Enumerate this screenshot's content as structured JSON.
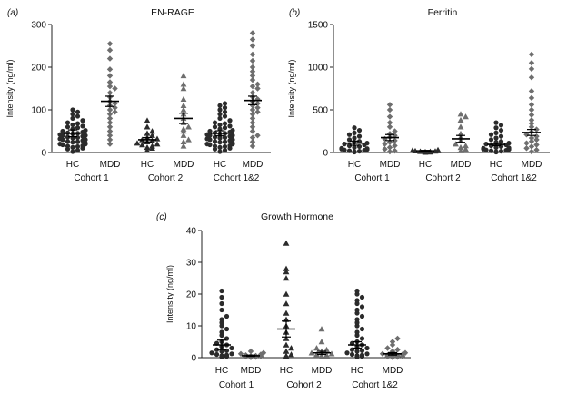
{
  "chart_data": [
    {
      "type": "scatter",
      "panel_label": "(a)",
      "title": "EN-RAGE",
      "ylabel": "Intensity (ng/ml)",
      "ylim": [
        0,
        300
      ],
      "yticks": [
        0,
        100,
        200,
        300
      ],
      "groups": [
        {
          "label": "HC",
          "marker": "circle",
          "color": "#2b2b2b",
          "mean": 45,
          "sem": 8,
          "values": [
            2,
            5,
            8,
            10,
            12,
            14,
            15,
            16,
            18,
            20,
            20,
            22,
            24,
            25,
            26,
            28,
            30,
            30,
            32,
            34,
            35,
            36,
            38,
            40,
            40,
            42,
            44,
            45,
            46,
            48,
            50,
            52,
            55,
            58,
            60,
            62,
            65,
            68,
            70,
            75,
            80,
            85,
            90,
            95,
            100
          ]
        },
        {
          "label": "MDD",
          "marker": "diamond",
          "color": "#6e6e6e",
          "mean": 120,
          "sem": 12,
          "values": [
            20,
            30,
            40,
            50,
            60,
            70,
            80,
            90,
            95,
            100,
            105,
            110,
            115,
            120,
            130,
            140,
            150,
            155,
            165,
            180,
            195,
            220,
            240,
            255
          ]
        },
        {
          "label": "HC",
          "marker": "triangle",
          "color": "#2b2b2b",
          "mean": 30,
          "sem": 5,
          "values": [
            5,
            10,
            12,
            15,
            18,
            20,
            22,
            25,
            28,
            30,
            32,
            35,
            40,
            45,
            50,
            60,
            75
          ]
        },
        {
          "label": "MDD",
          "marker": "triangle",
          "color": "#6e6e6e",
          "mean": 80,
          "sem": 12,
          "values": [
            15,
            25,
            30,
            40,
            50,
            55,
            60,
            70,
            80,
            90,
            100,
            110,
            125,
            150,
            160,
            180
          ]
        },
        {
          "label": "HC",
          "marker": "circle",
          "color": "#2b2b2b",
          "mean": 45,
          "sem": 6,
          "values": [
            2,
            5,
            8,
            10,
            12,
            14,
            15,
            16,
            18,
            20,
            20,
            22,
            24,
            25,
            26,
            28,
            30,
            30,
            32,
            34,
            35,
            36,
            38,
            40,
            40,
            42,
            44,
            45,
            46,
            48,
            50,
            52,
            55,
            58,
            60,
            62,
            65,
            68,
            70,
            75,
            80,
            85,
            90,
            95,
            100,
            105,
            110,
            115
          ]
        },
        {
          "label": "MDD",
          "marker": "diamond",
          "color": "#6e6e6e",
          "mean": 122,
          "sem": 10,
          "values": [
            15,
            25,
            35,
            40,
            50,
            60,
            70,
            80,
            90,
            95,
            100,
            105,
            110,
            115,
            120,
            125,
            130,
            140,
            150,
            155,
            160,
            170,
            180,
            190,
            200,
            215,
            230,
            250,
            265,
            280
          ]
        }
      ],
      "cohorts": [
        "Cohort 1",
        "Cohort 2",
        "Cohort 1&2"
      ]
    },
    {
      "type": "scatter",
      "panel_label": "(b)",
      "title": "Ferritin",
      "ylabel": "Intensity (ng/ml)",
      "ylim": [
        0,
        1500
      ],
      "yticks": [
        0,
        500,
        1000,
        1500
      ],
      "groups": [
        {
          "label": "HC",
          "marker": "circle",
          "color": "#2b2b2b",
          "mean": 110,
          "sem": 25,
          "values": [
            5,
            10,
            15,
            20,
            25,
            30,
            35,
            40,
            45,
            50,
            60,
            70,
            80,
            90,
            100,
            110,
            120,
            130,
            150,
            170,
            190,
            210,
            230,
            260,
            290
          ]
        },
        {
          "label": "MDD",
          "marker": "diamond",
          "color": "#6e6e6e",
          "mean": 175,
          "sem": 35,
          "values": [
            10,
            20,
            40,
            60,
            80,
            100,
            120,
            140,
            160,
            180,
            200,
            220,
            250,
            300,
            350,
            420,
            500,
            560
          ]
        },
        {
          "label": "HC",
          "marker": "triangle",
          "color": "#2b2b2b",
          "mean": 20,
          "sem": 5,
          "values": [
            3,
            5,
            8,
            10,
            12,
            15,
            18,
            20,
            25,
            30
          ]
        },
        {
          "label": "MDD",
          "marker": "triangle",
          "color": "#6e6e6e",
          "mean": 160,
          "sem": 40,
          "values": [
            20,
            40,
            60,
            80,
            100,
            140,
            180,
            220,
            300,
            380,
            420,
            450
          ]
        },
        {
          "label": "HC",
          "marker": "circle",
          "color": "#2b2b2b",
          "mean": 95,
          "sem": 15,
          "values": [
            5,
            10,
            15,
            20,
            25,
            30,
            35,
            40,
            45,
            50,
            55,
            60,
            70,
            80,
            90,
            100,
            110,
            120,
            130,
            150,
            170,
            190,
            210,
            230,
            260,
            290,
            320,
            350
          ]
        },
        {
          "label": "MDD",
          "marker": "diamond",
          "color": "#6e6e6e",
          "mean": 235,
          "sem": 35,
          "values": [
            10,
            30,
            50,
            70,
            90,
            110,
            130,
            150,
            170,
            190,
            210,
            240,
            270,
            300,
            340,
            380,
            440,
            500,
            560,
            640,
            720,
            880,
            980,
            1050,
            1150
          ]
        }
      ],
      "cohorts": [
        "Cohort 1",
        "Cohort 2",
        "Cohort 1&2"
      ]
    },
    {
      "type": "scatter",
      "panel_label": "(c)",
      "title": "Growth Hormone",
      "ylabel": "Intensity (ng/ml)",
      "ylim": [
        0,
        40
      ],
      "yticks": [
        0,
        10,
        20,
        30,
        40
      ],
      "groups": [
        {
          "label": "HC",
          "marker": "circle",
          "color": "#2b2b2b",
          "mean": 4,
          "sem": 1.5,
          "values": [
            0.2,
            0.4,
            0.6,
            0.8,
            1,
            1.2,
            1.5,
            2,
            2.2,
            2.5,
            3,
            3.5,
            4,
            4.5,
            5,
            6,
            7,
            8,
            9,
            10,
            11,
            12,
            13,
            15,
            17,
            19,
            21
          ]
        },
        {
          "label": "MDD",
          "marker": "diamond",
          "color": "#6e6e6e",
          "mean": 0.6,
          "sem": 0.2,
          "values": [
            0.1,
            0.2,
            0.3,
            0.4,
            0.5,
            0.6,
            0.8,
            1,
            1.2,
            1.5,
            2
          ]
        },
        {
          "label": "HC",
          "marker": "triangle",
          "color": "#2b2b2b",
          "mean": 9,
          "sem": 2.5,
          "values": [
            0.3,
            0.6,
            1,
            2,
            3,
            4,
            6,
            8,
            10,
            12,
            14,
            17,
            20,
            25,
            27,
            28,
            36
          ]
        },
        {
          "label": "MDD",
          "marker": "triangle",
          "color": "#6e6e6e",
          "mean": 1.5,
          "sem": 0.5,
          "values": [
            0.2,
            0.4,
            0.6,
            0.8,
            1,
            1.2,
            1.5,
            2,
            2.5,
            3,
            5,
            9
          ]
        },
        {
          "label": "HC",
          "marker": "circle",
          "color": "#2b2b2b",
          "mean": 4,
          "sem": 1,
          "values": [
            0.2,
            0.4,
            0.6,
            0.8,
            1,
            1.2,
            1.5,
            2,
            2.2,
            2.5,
            3,
            3.5,
            4,
            4.5,
            5,
            6,
            7,
            8,
            9,
            10,
            11,
            12,
            13,
            14,
            15,
            16,
            17,
            18,
            19,
            20,
            21
          ]
        },
        {
          "label": "MDD",
          "marker": "diamond",
          "color": "#6e6e6e",
          "mean": 1.2,
          "sem": 0.4,
          "values": [
            0.1,
            0.2,
            0.3,
            0.4,
            0.5,
            0.6,
            0.8,
            1,
            1.2,
            1.5,
            2,
            2.5,
            3,
            4,
            5,
            6
          ]
        }
      ],
      "cohorts": [
        "Cohort 1",
        "Cohort 2",
        "Cohort 1&2"
      ]
    }
  ]
}
